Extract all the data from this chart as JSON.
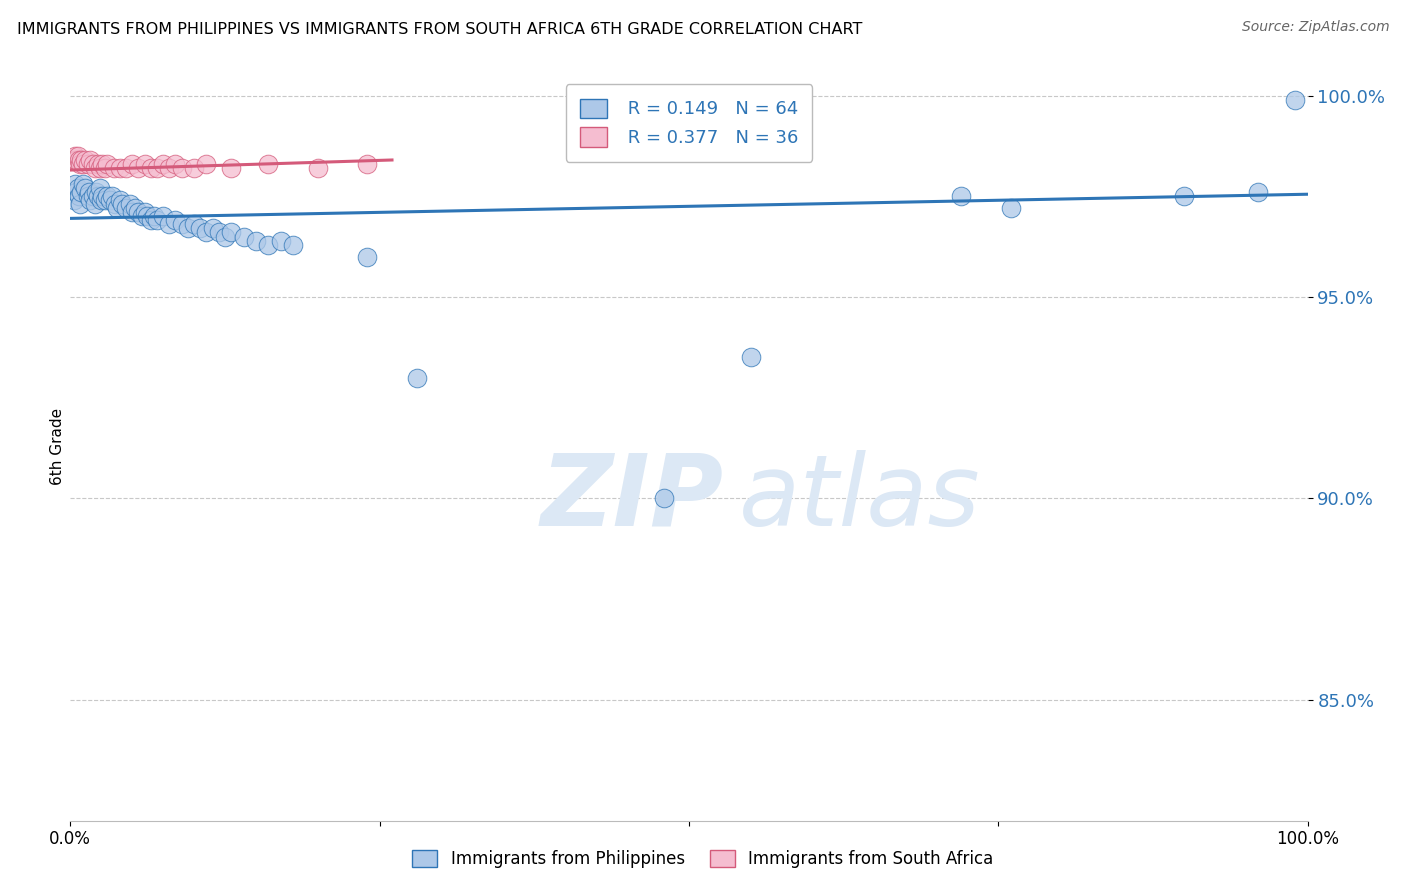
{
  "title": "IMMIGRANTS FROM PHILIPPINES VS IMMIGRANTS FROM SOUTH AFRICA 6TH GRADE CORRELATION CHART",
  "source": "Source: ZipAtlas.com",
  "ylabel": "6th Grade",
  "blue_R": 0.149,
  "blue_N": 64,
  "pink_R": 0.377,
  "pink_N": 36,
  "blue_color": "#adc8e8",
  "blue_line_color": "#2e75b6",
  "pink_color": "#f5bdd0",
  "pink_line_color": "#d45a7a",
  "watermark_color": "#dce8f5",
  "blue_scatter_x": [
    0.003,
    0.004,
    0.005,
    0.006,
    0.007,
    0.008,
    0.009,
    0.01,
    0.012,
    0.014,
    0.015,
    0.016,
    0.018,
    0.02,
    0.021,
    0.022,
    0.024,
    0.025,
    0.026,
    0.028,
    0.03,
    0.032,
    0.034,
    0.036,
    0.038,
    0.04,
    0.042,
    0.045,
    0.048,
    0.05,
    0.052,
    0.055,
    0.058,
    0.06,
    0.062,
    0.065,
    0.068,
    0.07,
    0.075,
    0.08,
    0.085,
    0.09,
    0.095,
    0.1,
    0.105,
    0.11,
    0.115,
    0.12,
    0.125,
    0.13,
    0.14,
    0.15,
    0.16,
    0.17,
    0.18,
    0.24,
    0.28,
    0.48,
    0.55,
    0.72,
    0.76,
    0.9,
    0.96,
    0.99
  ],
  "blue_scatter_y": [
    0.974,
    0.978,
    0.976,
    0.977,
    0.975,
    0.973,
    0.976,
    0.978,
    0.977,
    0.975,
    0.976,
    0.974,
    0.975,
    0.973,
    0.976,
    0.975,
    0.977,
    0.974,
    0.975,
    0.974,
    0.975,
    0.974,
    0.975,
    0.973,
    0.972,
    0.974,
    0.973,
    0.972,
    0.973,
    0.971,
    0.972,
    0.971,
    0.97,
    0.971,
    0.97,
    0.969,
    0.97,
    0.969,
    0.97,
    0.968,
    0.969,
    0.968,
    0.967,
    0.968,
    0.967,
    0.966,
    0.967,
    0.966,
    0.965,
    0.966,
    0.965,
    0.964,
    0.963,
    0.964,
    0.963,
    0.96,
    0.93,
    0.9,
    0.935,
    0.975,
    0.972,
    0.975,
    0.976,
    0.999
  ],
  "pink_scatter_x": [
    0.003,
    0.004,
    0.005,
    0.006,
    0.007,
    0.008,
    0.009,
    0.01,
    0.012,
    0.014,
    0.016,
    0.018,
    0.02,
    0.022,
    0.024,
    0.026,
    0.028,
    0.03,
    0.035,
    0.04,
    0.045,
    0.05,
    0.055,
    0.06,
    0.065,
    0.07,
    0.075,
    0.08,
    0.085,
    0.09,
    0.1,
    0.11,
    0.13,
    0.16,
    0.2,
    0.24
  ],
  "pink_scatter_y": [
    0.984,
    0.985,
    0.984,
    0.985,
    0.984,
    0.983,
    0.984,
    0.983,
    0.984,
    0.983,
    0.984,
    0.983,
    0.982,
    0.983,
    0.982,
    0.983,
    0.982,
    0.983,
    0.982,
    0.982,
    0.982,
    0.983,
    0.982,
    0.983,
    0.982,
    0.982,
    0.983,
    0.982,
    0.983,
    0.982,
    0.982,
    0.983,
    0.982,
    0.983,
    0.982,
    0.983
  ],
  "blue_trendline": [
    0.0,
    1.0,
    0.9695,
    0.9755
  ],
  "pink_trendline": [
    0.0,
    0.26,
    0.9815,
    0.984
  ],
  "xlim": [
    0.0,
    1.0
  ],
  "ylim": [
    0.82,
    1.006
  ],
  "ytick_positions": [
    0.85,
    0.9,
    0.95,
    1.0
  ],
  "ytick_labels": [
    "85.0%",
    "90.0%",
    "95.0%",
    "100.0%"
  ],
  "xtick_positions": [
    0.0,
    0.25,
    0.5,
    0.75,
    1.0
  ],
  "xtick_labels": [
    "0.0%",
    "",
    "",
    "",
    "100.0%"
  ]
}
